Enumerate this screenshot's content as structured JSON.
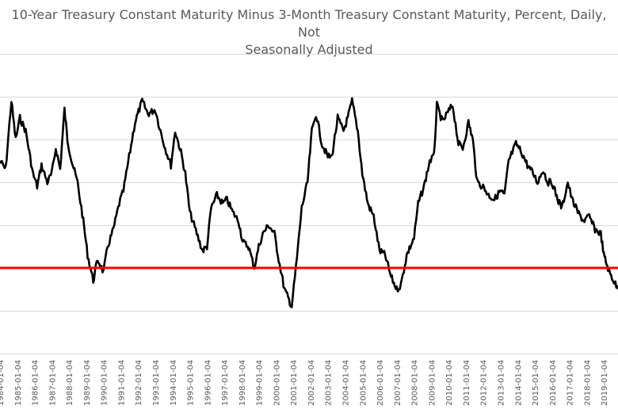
{
  "chart_data": {
    "type": "line",
    "title_line1": "10-Year Treasury Constant Maturity Minus 3-Month Treasury Constant Maturity, Percent, Daily, Not",
    "title_line2": "Seasonally Adjusted",
    "xlabel": "",
    "ylabel": "",
    "x_tick_labels": [
      "1984-01-04",
      "1985-01-04",
      "1986-01-04",
      "1987-01-04",
      "1988-01-04",
      "1989-01-04",
      "1990-01-04",
      "1991-01-04",
      "1992-01-04",
      "1993-01-04",
      "1994-01-04",
      "1995-01-04",
      "1996-01-04",
      "1997-01-04",
      "1998-01-04",
      "1999-01-04",
      "2000-01-04",
      "2001-01-04",
      "2002-01-04",
      "2003-01-04",
      "2004-01-04",
      "2005-01-04",
      "2006-01-04",
      "2007-01-04",
      "2008-01-04",
      "2009-01-04",
      "2010-01-04",
      "2011-01-04",
      "2012-01-04",
      "2013-01-04",
      "2014-01-04",
      "2015-01-04",
      "2016-01-04",
      "2017-01-04",
      "2018-01-04",
      "2019-01-04"
    ],
    "xlim": [
      "1984-01-04",
      "2019-10-31"
    ],
    "ylim": [
      -2,
      5
    ],
    "y_grid_values": [
      -2,
      -1,
      0,
      1,
      2,
      3,
      4,
      5
    ],
    "grid": true,
    "legend": "none",
    "reference_line": {
      "y": 0,
      "color": "#ff0000"
    },
    "series": [
      {
        "color": "#000000",
        "points": [
          [
            "1984-01-04",
            2.5
          ],
          [
            "1984-05-01",
            2.3
          ],
          [
            "1984-09-01",
            3.9
          ],
          [
            "1984-12-01",
            3.0
          ],
          [
            "1985-03-01",
            3.5
          ],
          [
            "1985-07-01",
            3.2
          ],
          [
            "1985-12-01",
            2.2
          ],
          [
            "1986-03-01",
            1.9
          ],
          [
            "1986-06-01",
            2.4
          ],
          [
            "1986-10-01",
            2.0
          ],
          [
            "1987-01-04",
            2.2
          ],
          [
            "1987-04-01",
            2.8
          ],
          [
            "1987-07-01",
            2.3
          ],
          [
            "1987-10-01",
            3.7
          ],
          [
            "1987-12-01",
            3.0
          ],
          [
            "1988-03-01",
            2.5
          ],
          [
            "1988-07-01",
            2.0
          ],
          [
            "1988-11-01",
            1.1
          ],
          [
            "1989-02-01",
            0.3
          ],
          [
            "1989-06-01",
            -0.3
          ],
          [
            "1989-09-01",
            0.2
          ],
          [
            "1990-01-04",
            -0.1
          ],
          [
            "1990-04-01",
            0.5
          ],
          [
            "1990-08-01",
            0.9
          ],
          [
            "1990-12-01",
            1.5
          ],
          [
            "1991-03-01",
            1.8
          ],
          [
            "1991-07-01",
            2.6
          ],
          [
            "1991-11-01",
            3.4
          ],
          [
            "1992-04-01",
            3.9
          ],
          [
            "1992-08-01",
            3.6
          ],
          [
            "1993-01-04",
            3.7
          ],
          [
            "1993-04-01",
            3.3
          ],
          [
            "1993-08-01",
            2.8
          ],
          [
            "1993-12-01",
            2.4
          ],
          [
            "1994-03-01",
            3.2
          ],
          [
            "1994-07-01",
            2.7
          ],
          [
            "1994-10-01",
            2.2
          ],
          [
            "1995-01-04",
            1.3
          ],
          [
            "1995-06-01",
            0.8
          ],
          [
            "1995-10-01",
            0.4
          ],
          [
            "1996-01-04",
            0.5
          ],
          [
            "1996-04-01",
            1.4
          ],
          [
            "1996-08-01",
            1.7
          ],
          [
            "1996-12-01",
            1.5
          ],
          [
            "1997-03-01",
            1.6
          ],
          [
            "1997-07-01",
            1.3
          ],
          [
            "1997-11-01",
            1.1
          ],
          [
            "1998-02-01",
            0.6
          ],
          [
            "1998-06-01",
            0.5
          ],
          [
            "1998-10-01",
            0.0
          ],
          [
            "1999-01-04",
            0.5
          ],
          [
            "1999-04-01",
            0.8
          ],
          [
            "1999-08-01",
            1.0
          ],
          [
            "1999-12-01",
            0.8
          ],
          [
            "2000-03-01",
            0.2
          ],
          [
            "2000-07-01",
            -0.5
          ],
          [
            "2000-12-01",
            -0.9
          ],
          [
            "2001-03-01",
            0.0
          ],
          [
            "2001-07-01",
            1.4
          ],
          [
            "2001-11-01",
            2.0
          ],
          [
            "2002-02-01",
            3.2
          ],
          [
            "2002-05-01",
            3.6
          ],
          [
            "2002-09-01",
            2.9
          ],
          [
            "2003-01-04",
            2.6
          ],
          [
            "2003-04-01",
            2.6
          ],
          [
            "2003-08-01",
            3.5
          ],
          [
            "2003-12-01",
            3.2
          ],
          [
            "2004-03-01",
            3.5
          ],
          [
            "2004-06-01",
            3.9
          ],
          [
            "2004-10-01",
            3.2
          ],
          [
            "2005-01-04",
            2.2
          ],
          [
            "2005-05-01",
            1.5
          ],
          [
            "2005-09-01",
            1.2
          ],
          [
            "2006-01-04",
            0.4
          ],
          [
            "2006-05-01",
            0.3
          ],
          [
            "2006-09-01",
            -0.2
          ],
          [
            "2007-01-04",
            -0.5
          ],
          [
            "2007-04-01",
            -0.4
          ],
          [
            "2007-08-01",
            0.3
          ],
          [
            "2008-01-04",
            0.7
          ],
          [
            "2008-04-01",
            1.5
          ],
          [
            "2008-08-01",
            1.9
          ],
          [
            "2008-12-01",
            2.5
          ],
          [
            "2009-03-01",
            2.6
          ],
          [
            "2009-05-01",
            3.8
          ],
          [
            "2009-09-01",
            3.4
          ],
          [
            "2009-12-01",
            3.6
          ],
          [
            "2010-04-01",
            3.8
          ],
          [
            "2010-08-01",
            2.9
          ],
          [
            "2010-11-01",
            2.8
          ],
          [
            "2011-03-01",
            3.4
          ],
          [
            "2011-06-01",
            3.0
          ],
          [
            "2011-09-01",
            2.0
          ],
          [
            "2012-01-04",
            1.9
          ],
          [
            "2012-05-01",
            1.7
          ],
          [
            "2012-09-01",
            1.6
          ],
          [
            "2013-01-04",
            1.8
          ],
          [
            "2013-04-01",
            1.7
          ],
          [
            "2013-07-01",
            2.5
          ],
          [
            "2013-12-01",
            2.9
          ],
          [
            "2014-04-01",
            2.7
          ],
          [
            "2014-08-01",
            2.4
          ],
          [
            "2014-12-01",
            2.2
          ],
          [
            "2015-03-01",
            2.0
          ],
          [
            "2015-07-01",
            2.3
          ],
          [
            "2015-10-01",
            2.0
          ],
          [
            "2016-01-04",
            2.0
          ],
          [
            "2016-05-01",
            1.6
          ],
          [
            "2016-08-01",
            1.4
          ],
          [
            "2016-12-01",
            2.0
          ],
          [
            "2017-03-01",
            1.6
          ],
          [
            "2017-07-01",
            1.3
          ],
          [
            "2017-11-01",
            1.1
          ],
          [
            "2018-03-01",
            1.2
          ],
          [
            "2018-07-01",
            0.9
          ],
          [
            "2018-11-01",
            0.8
          ],
          [
            "2019-01-04",
            0.3
          ],
          [
            "2019-03-01",
            0.1
          ],
          [
            "2019-05-01",
            -0.1
          ],
          [
            "2019-08-01",
            -0.3
          ],
          [
            "2019-10-31",
            -0.5
          ]
        ]
      }
    ]
  }
}
